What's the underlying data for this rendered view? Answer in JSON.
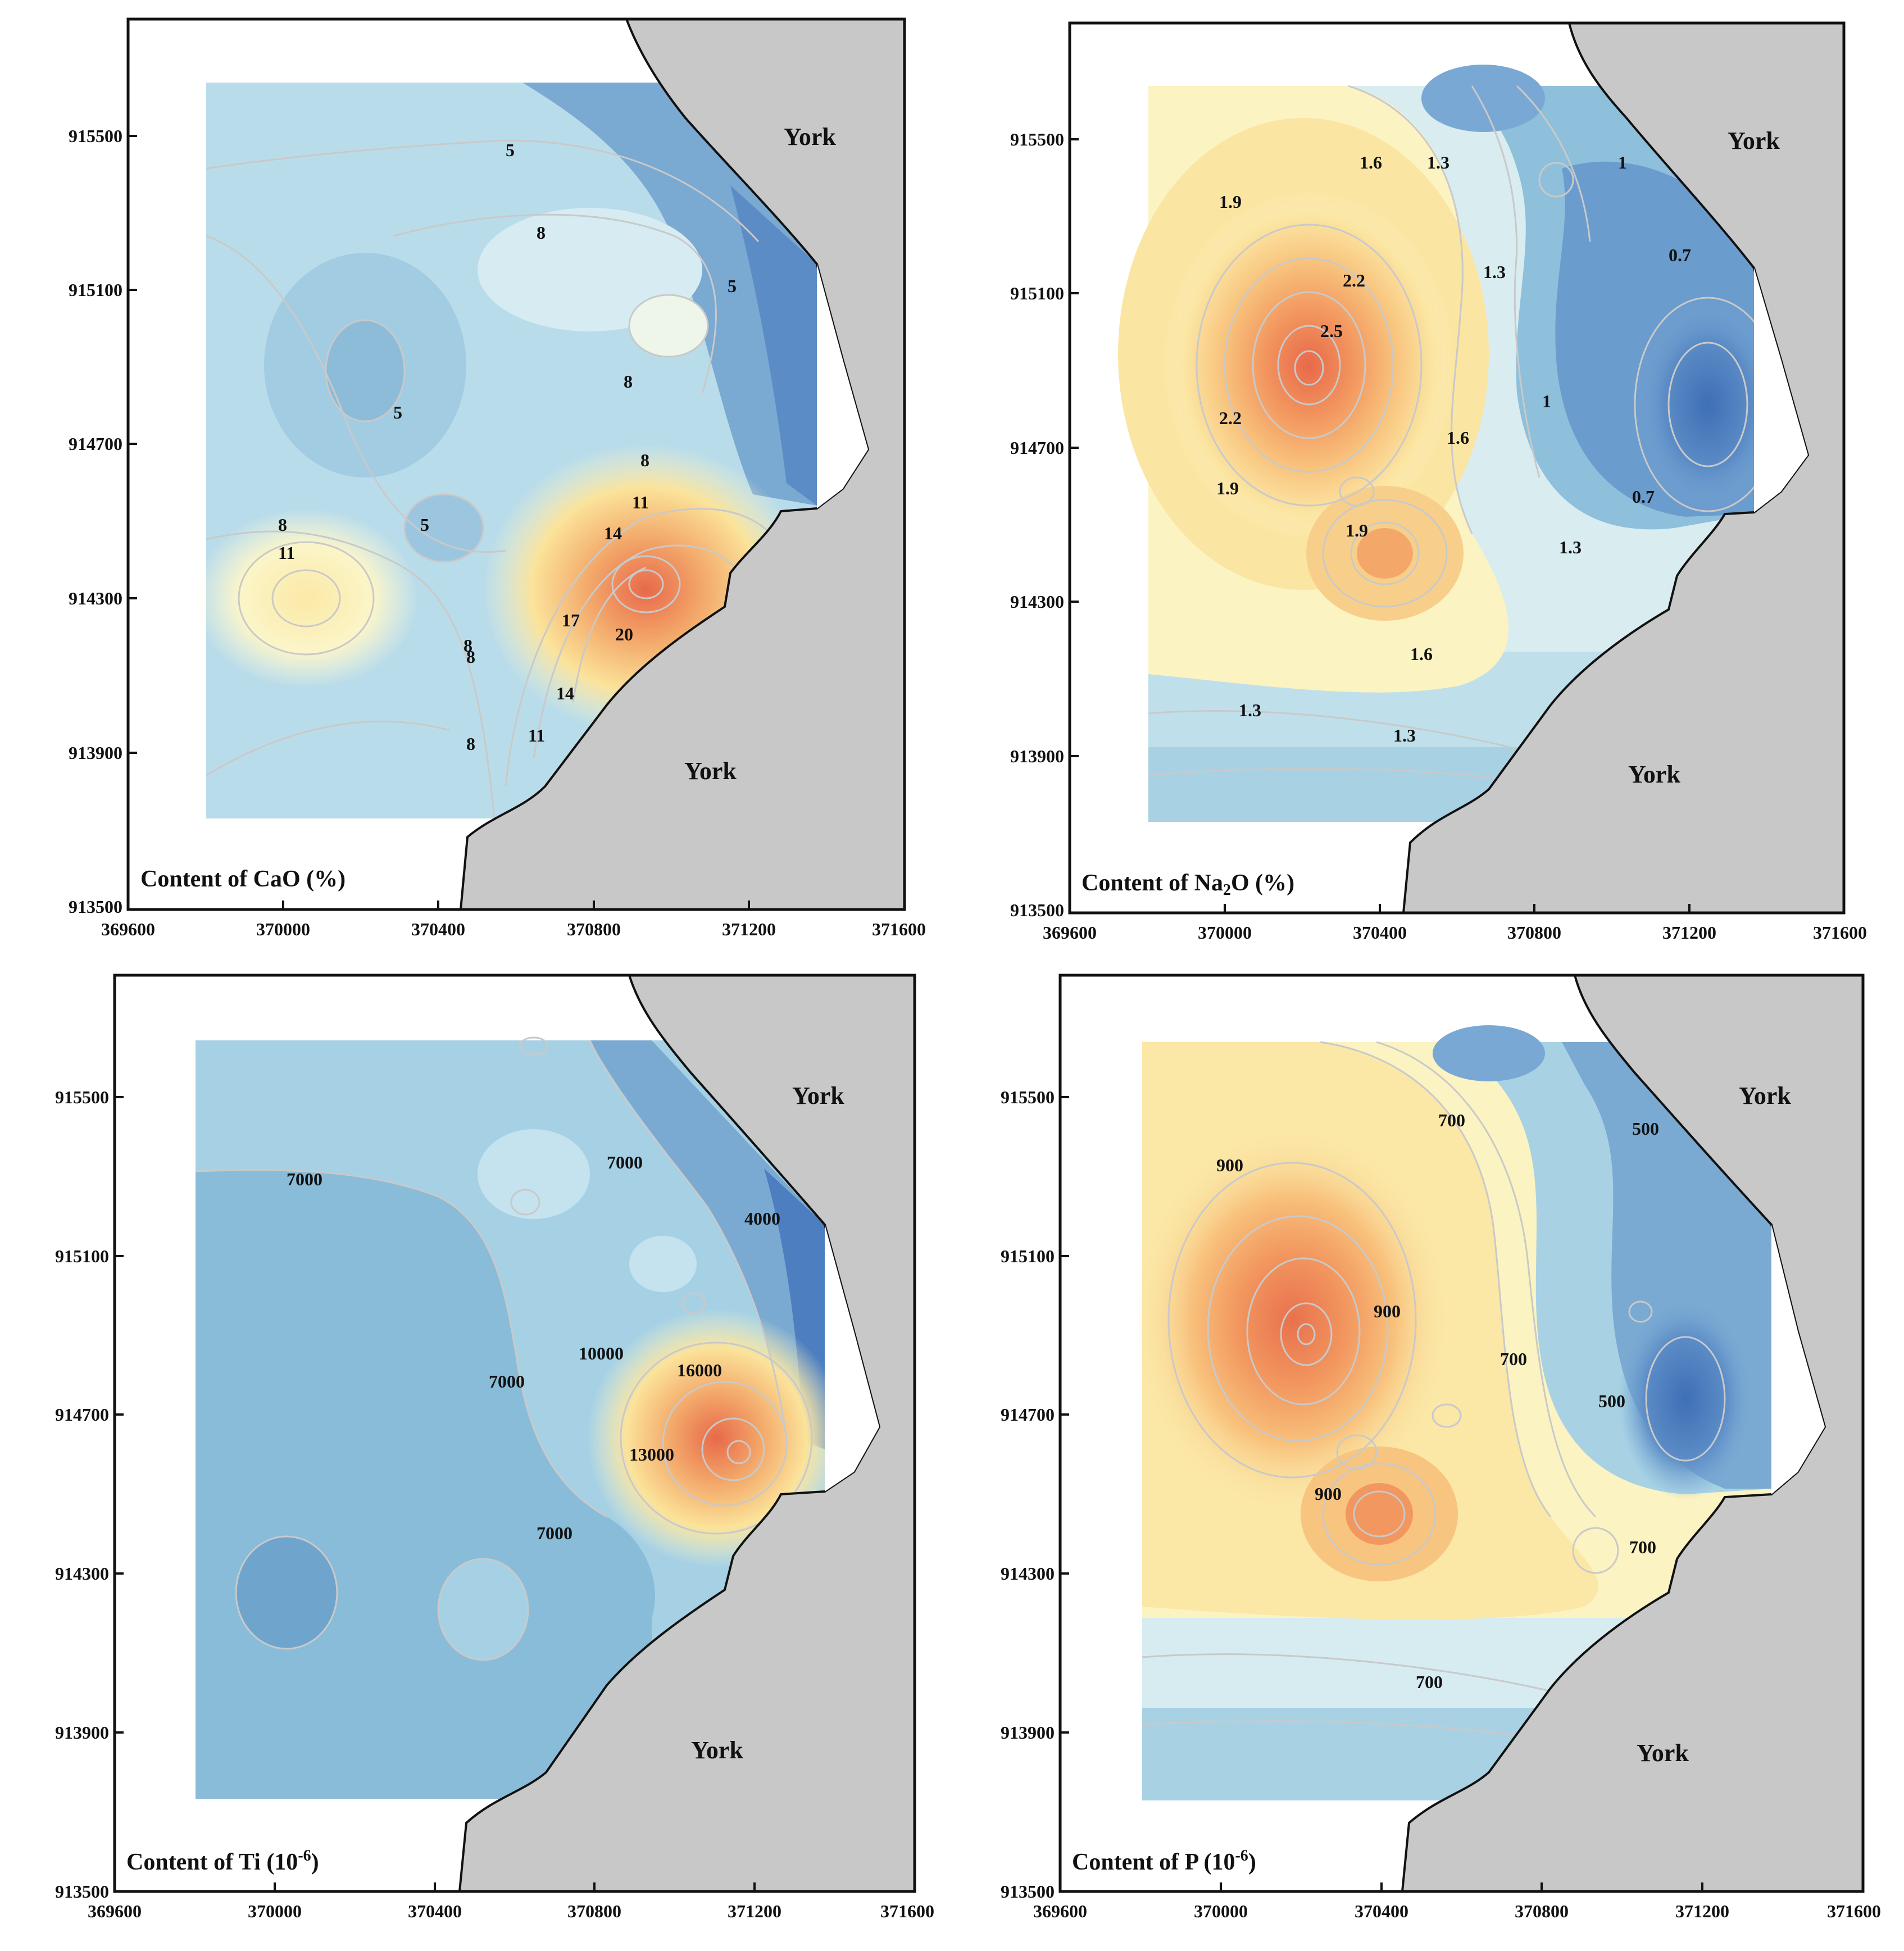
{
  "figure": {
    "panels": [
      {
        "id": "cao",
        "caption_prefix": "Content of CaO",
        "caption_unit": "(%)",
        "place_top": "York",
        "place_bottom": "York",
        "x_ticks": [
          "369600",
          "370000",
          "370400",
          "370800",
          "371200",
          "371600"
        ],
        "y_ticks": [
          "915500",
          "915100",
          "914700",
          "914300",
          "913900",
          "913500"
        ],
        "contour_labels": [
          "5",
          "8",
          "5",
          "8",
          "5",
          "8",
          "5",
          "8",
          "11",
          "8",
          "11",
          "14",
          "17",
          "20",
          "8",
          "14",
          "8",
          "11"
        ]
      },
      {
        "id": "na2o",
        "caption_prefix": "Content of Na",
        "caption_sub": "2",
        "caption_suffix": "O (%)",
        "place_top": "York",
        "place_bottom": "York",
        "x_ticks": [
          "369600",
          "370000",
          "370400",
          "370800",
          "371200",
          "371600"
        ],
        "y_ticks": [
          "915500",
          "915100",
          "914700",
          "914300",
          "913900",
          "913500"
        ],
        "contour_labels": [
          "1.6",
          "1.3",
          "1",
          "1.9",
          "2.2",
          "1.3",
          "0.7",
          "2.5",
          "2.2",
          "1",
          "1.6",
          "1.9",
          "0.7",
          "1.9",
          "1.3",
          "1.6",
          "1.3",
          "1.3"
        ]
      },
      {
        "id": "ti",
        "caption_prefix": "Content of Ti (10",
        "caption_sup": "-6",
        "caption_suffix": ")",
        "place_top": "York",
        "place_bottom": "York",
        "x_ticks": [
          "369600",
          "370000",
          "370400",
          "370800",
          "371200",
          "371600"
        ],
        "y_ticks": [
          "915500",
          "915100",
          "914700",
          "914300",
          "913900",
          "913500"
        ],
        "contour_labels": [
          "7000",
          "7000",
          "4000",
          "10000",
          "16000",
          "7000",
          "13000",
          "7000"
        ]
      },
      {
        "id": "p",
        "caption_prefix": "Content of P (10",
        "caption_sup": "-6",
        "caption_suffix": ")",
        "place_top": "York",
        "place_bottom": "York",
        "x_ticks": [
          "369600",
          "370000",
          "370400",
          "370800",
          "371200",
          "371600"
        ],
        "y_ticks": [
          "915500",
          "915100",
          "914700",
          "914300",
          "913900",
          "913500"
        ],
        "contour_labels": [
          "700",
          "500",
          "900",
          "900",
          "700",
          "500",
          "900",
          "700",
          "700"
        ]
      }
    ]
  }
}
